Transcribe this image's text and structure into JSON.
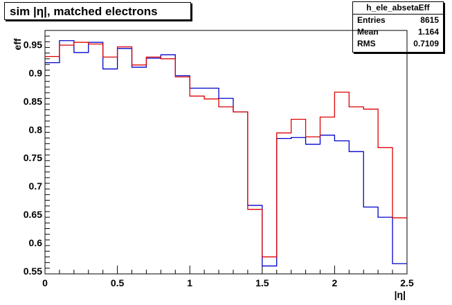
{
  "title": "sim |η|, matched electrons",
  "stats": {
    "name": "h_ele_absetaEff",
    "rows": [
      {
        "label": "Entries",
        "value": "8615"
      },
      {
        "label": "Mean",
        "value": "1.164"
      },
      {
        "label": "RMS",
        "value": "0.7109"
      }
    ]
  },
  "chart_data": {
    "type": "line",
    "style": "step-histogram",
    "xlabel": "|η|",
    "ylabel": "eff",
    "xlim": [
      0,
      2.5
    ],
    "ylim": [
      0.545,
      0.975
    ],
    "x_ticks": [
      "0",
      "0.5",
      "1",
      "1.5",
      "2",
      "2.5"
    ],
    "y_ticks": [
      "0.55",
      "0.6",
      "0.65",
      "0.7",
      "0.75",
      "0.8",
      "0.85",
      "0.9",
      "0.95"
    ],
    "bin_edges": [
      0,
      0.1,
      0.2,
      0.3,
      0.4,
      0.5,
      0.6,
      0.7,
      0.8,
      0.9,
      1.0,
      1.1,
      1.2,
      1.3,
      1.4,
      1.5,
      1.6,
      1.7,
      1.8,
      1.9,
      2.0,
      2.1,
      2.2,
      2.3,
      2.4,
      2.5
    ],
    "series": [
      {
        "color": "#0000cc",
        "values": [
          0.918,
          0.957,
          0.936,
          0.954,
          0.907,
          0.943,
          0.91,
          0.926,
          0.932,
          0.895,
          0.873,
          0.873,
          0.855,
          0.831,
          0.666,
          0.559,
          0.784,
          0.786,
          0.774,
          0.79,
          0.78,
          0.761,
          0.663,
          0.645,
          0.563
        ]
      },
      {
        "color": "#dd0000",
        "values": [
          0.929,
          0.949,
          0.954,
          0.951,
          0.928,
          0.946,
          0.914,
          0.928,
          0.925,
          0.893,
          0.859,
          0.854,
          0.84,
          0.831,
          0.659,
          0.575,
          0.794,
          0.818,
          0.787,
          0.822,
          0.866,
          0.84,
          0.836,
          0.768,
          0.644
        ]
      }
    ]
  }
}
